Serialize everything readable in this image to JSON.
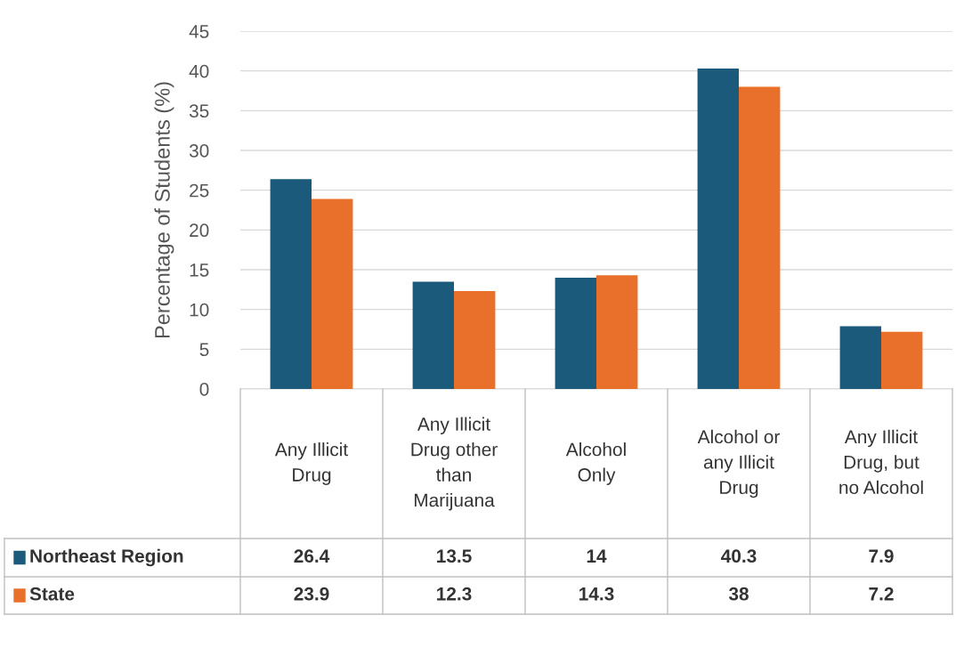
{
  "chart_data": {
    "type": "bar",
    "ylabel": "Percentage of Students (%)",
    "categories": [
      "Any Illicit Drug",
      "Any Illicit Drug other than Marijuana",
      "Alcohol Only",
      "Alcohol or any Illicit Drug",
      "Any Illicit Drug, but no Alcohol"
    ],
    "series": [
      {
        "name": "Northeast Region",
        "color": "#1b5a7a",
        "values": [
          26.4,
          13.5,
          14,
          40.3,
          7.9
        ]
      },
      {
        "name": "State",
        "color": "#e8702a",
        "values": [
          23.9,
          12.3,
          14.3,
          38,
          7.2
        ]
      }
    ],
    "ylim": [
      0,
      45
    ],
    "yticks": [
      0,
      5,
      10,
      15,
      20,
      25,
      30,
      35,
      40,
      45
    ],
    "grid": "y",
    "legend": "bottom",
    "data_labels": true
  }
}
